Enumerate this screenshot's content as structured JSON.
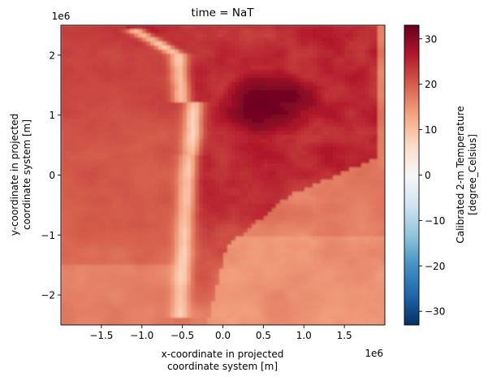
{
  "chart_data": {
    "type": "heatmap",
    "title": "time = NaT",
    "xlabel_line1": "x-coordinate in projected",
    "xlabel_line2": "coordinate system [m]",
    "ylabel_line1": "y-coordinate in projected",
    "ylabel_line2": "coordinate system [m]",
    "x_offset_label": "1e6",
    "y_offset_label": "1e6",
    "xlim": [
      -2.0,
      2.0
    ],
    "ylim": [
      -2.5,
      2.5
    ],
    "x_ticks": [
      -1.5,
      -1.0,
      -0.5,
      0.0,
      0.5,
      1.0,
      1.5
    ],
    "x_tick_labels": [
      "−1.5",
      "−1.0",
      "−0.5",
      "0.0",
      "0.5",
      "1.0",
      "1.5"
    ],
    "y_ticks": [
      2,
      1,
      0,
      -1,
      -2
    ],
    "y_tick_labels": [
      "2",
      "1",
      "0",
      "−1",
      "−2"
    ],
    "colorbar": {
      "label_line1": "Calibrated 2-m Temperature",
      "label_line2": "[degree_Celsius]",
      "range": [
        -33,
        33
      ],
      "ticks": [
        30,
        20,
        10,
        0,
        -10,
        -20,
        -30
      ],
      "tick_labels": [
        "30",
        "20",
        "10",
        "0",
        "−10",
        "−20",
        "−30"
      ],
      "colormap": "RdBu_r"
    },
    "field_features": {
      "ocean_west_celsius": 20,
      "ocean_southwest_celsius": 17,
      "ocean_east_celsius": 15,
      "continent_north_celsius": 25,
      "continent_hot_core_celsius": 30,
      "andes_ridge_celsius": 6
    },
    "colors": {
      "cmap_stops": [
        "#053061",
        "#2166ac",
        "#4393c3",
        "#92c5de",
        "#d1e5f0",
        "#f7f7f7",
        "#fddbc7",
        "#f4a582",
        "#d6604d",
        "#b2182b",
        "#67001f"
      ]
    }
  }
}
